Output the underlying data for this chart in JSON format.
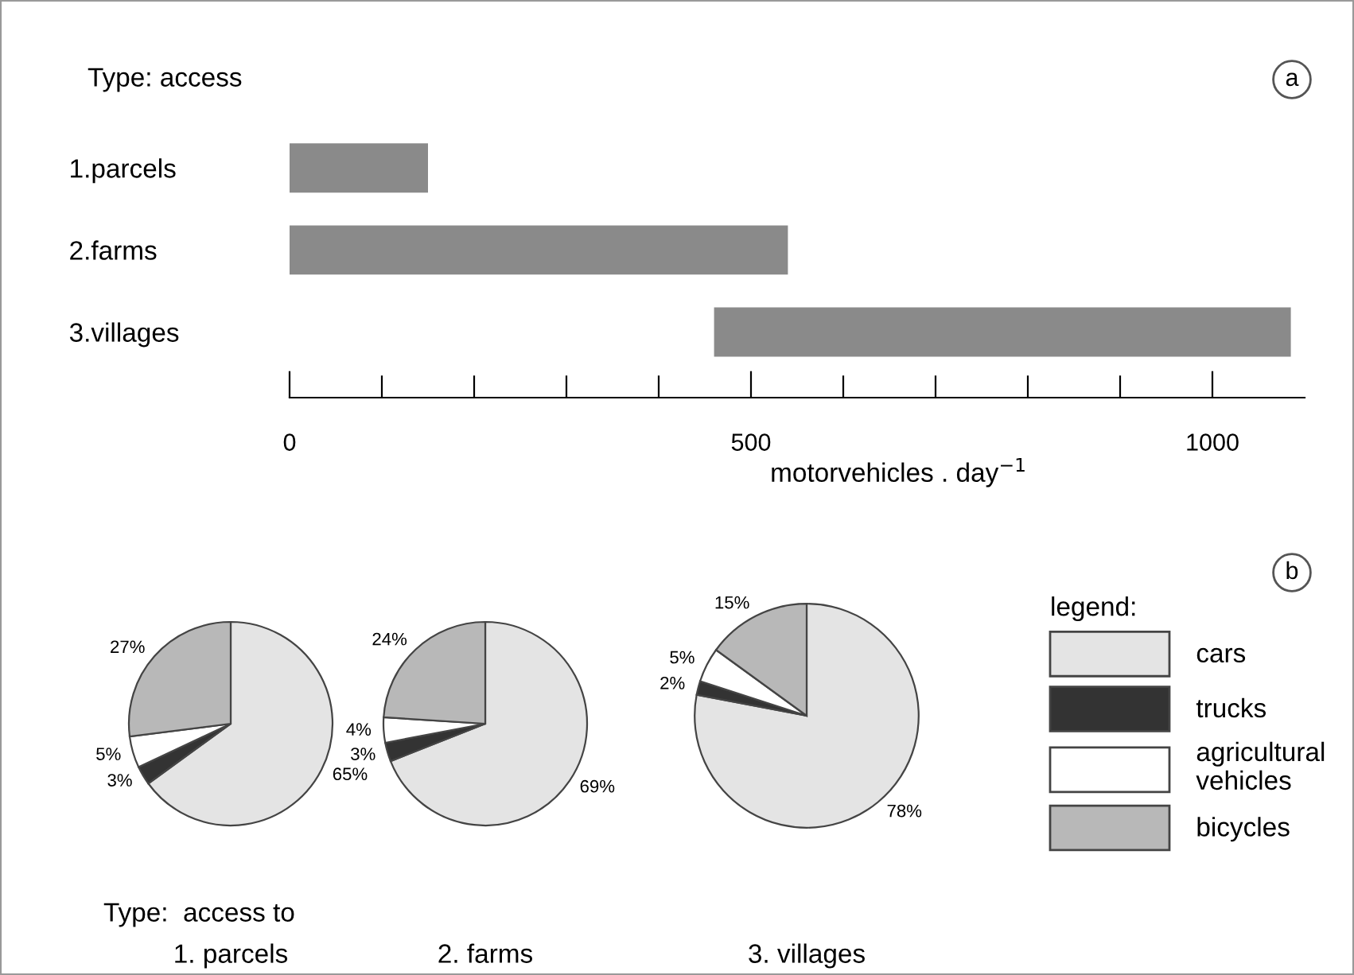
{
  "chart_data": [
    {
      "type": "bar",
      "orientation": "horizontal",
      "title": "Type: access",
      "categories": [
        "1.parcels",
        "2.farms",
        "3.villages"
      ],
      "base": [
        0,
        0,
        460
      ],
      "values": [
        150,
        540,
        625
      ],
      "color": "#8a8a8a",
      "xlabel": "motorvehicles . day$^{−1}$",
      "xlim": [
        0,
        1100
      ],
      "xticks": [
        0,
        {
          "value": 100,
          "label": null
        },
        {
          "value": 200,
          "label": null
        },
        {
          "value": 300,
          "label": null
        },
        {
          "value": 400,
          "label": null
        },
        500,
        {
          "value": 600,
          "label": null
        },
        {
          "value": 700,
          "label": null
        },
        {
          "value": 800,
          "label": null
        },
        {
          "value": 900,
          "label": null
        },
        1000
      ],
      "grid": false,
      "annotations": [
        "a"
      ]
    },
    {
      "type": "pie",
      "title": "Type:  access to",
      "subtitle": "1. parcels",
      "categories": [
        "cars",
        "trucks",
        "agricultural\nvehicles",
        "bicycles"
      ],
      "values": [
        65,
        3,
        5,
        27
      ],
      "value_labels": [
        "65%",
        "3%",
        "5%",
        "27%"
      ],
      "colors": [
        "#e4e4e4",
        "#333333",
        "#ffffff",
        "#b8b8b8"
      ],
      "legend": "right",
      "legend_title": "legend:"
    },
    {
      "type": "pie",
      "subtitle": "2. farms",
      "categories": [
        null,
        null,
        null,
        null
      ],
      "values": [
        69,
        3,
        4,
        24
      ],
      "value_labels": [
        "69%",
        "3%",
        "4%",
        "24%"
      ],
      "colors": [
        "#e4e4e4",
        "#333333",
        "#ffffff",
        "#b8b8b8"
      ]
    },
    {
      "type": "pie",
      "subtitle": "3. villages",
      "categories": [
        null,
        null,
        null,
        null
      ],
      "values": [
        78,
        2,
        5,
        15
      ],
      "value_labels": [
        "78%",
        "2%",
        "5%",
        "15%"
      ],
      "colors": [
        "#e4e4e4",
        "#333333",
        "#ffffff",
        "#b8b8b8"
      ],
      "annotations": [
        "b"
      ]
    }
  ]
}
